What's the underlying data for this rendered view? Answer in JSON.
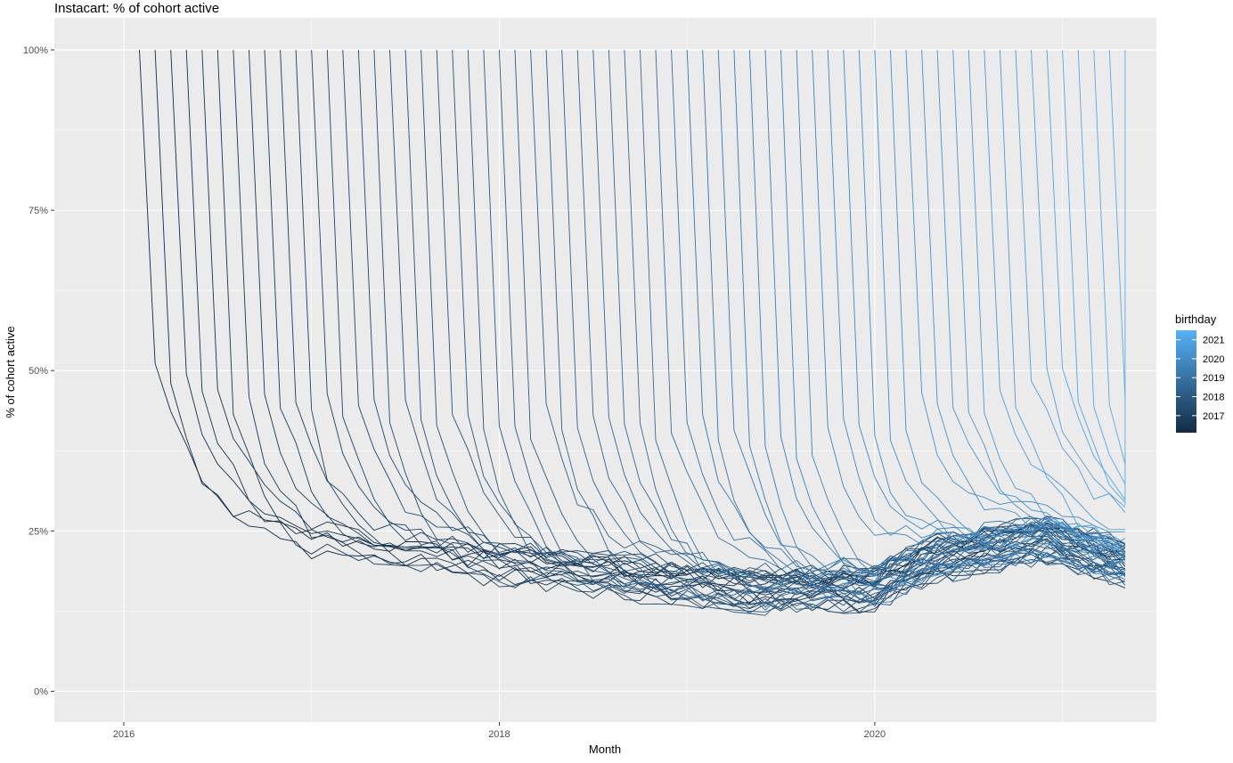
{
  "chart_data": {
    "type": "line",
    "title": "Instacart: % of cohort active",
    "xlabel": "Month",
    "ylabel": "% of cohort active",
    "x_ticks": [
      {
        "value": 2016,
        "label": "2016"
      },
      {
        "value": 2018,
        "label": "2018"
      },
      {
        "value": 2020,
        "label": "2020"
      }
    ],
    "y_ticks": [
      {
        "value": 0,
        "label": "0%"
      },
      {
        "value": 25,
        "label": "25%"
      },
      {
        "value": 50,
        "label": "50%"
      },
      {
        "value": 75,
        "label": "75%"
      },
      {
        "value": 100,
        "label": "100%"
      }
    ],
    "xlim": [
      2015.63,
      2021.5
    ],
    "ylim": [
      -4.8,
      105
    ],
    "grid": true,
    "legend": {
      "title": "birthday",
      "placement": "right",
      "type": "colorbar",
      "color_low": "#132B43",
      "color_high": "#56B1F7",
      "range": [
        2016.1,
        2021.5
      ],
      "labels": [
        "2021",
        "2020",
        "2019",
        "2018",
        "2017"
      ],
      "label_values": [
        2021,
        2020,
        2019,
        2018,
        2017
      ]
    },
    "series_description": {
      "name_field": "birthday",
      "first_cohort_start": "2016-02",
      "last_data_month": "2021-05",
      "cohort_spacing_months": 1,
      "initial_value": 100,
      "overall_trend": [
        {
          "x": "2016-03",
          "y": 32
        },
        {
          "x": "2016-06",
          "y": 26
        },
        {
          "x": "2017-01",
          "y": 23
        },
        {
          "x": "2018-01",
          "y": 20
        },
        {
          "x": "2019-06",
          "y": 16
        },
        {
          "x": "2020-01",
          "y": 16.5
        },
        {
          "x": "2020-05",
          "y": 21
        },
        {
          "x": "2020-12",
          "y": 24
        },
        {
          "x": "2021-05",
          "y": 20
        }
      ]
    }
  }
}
